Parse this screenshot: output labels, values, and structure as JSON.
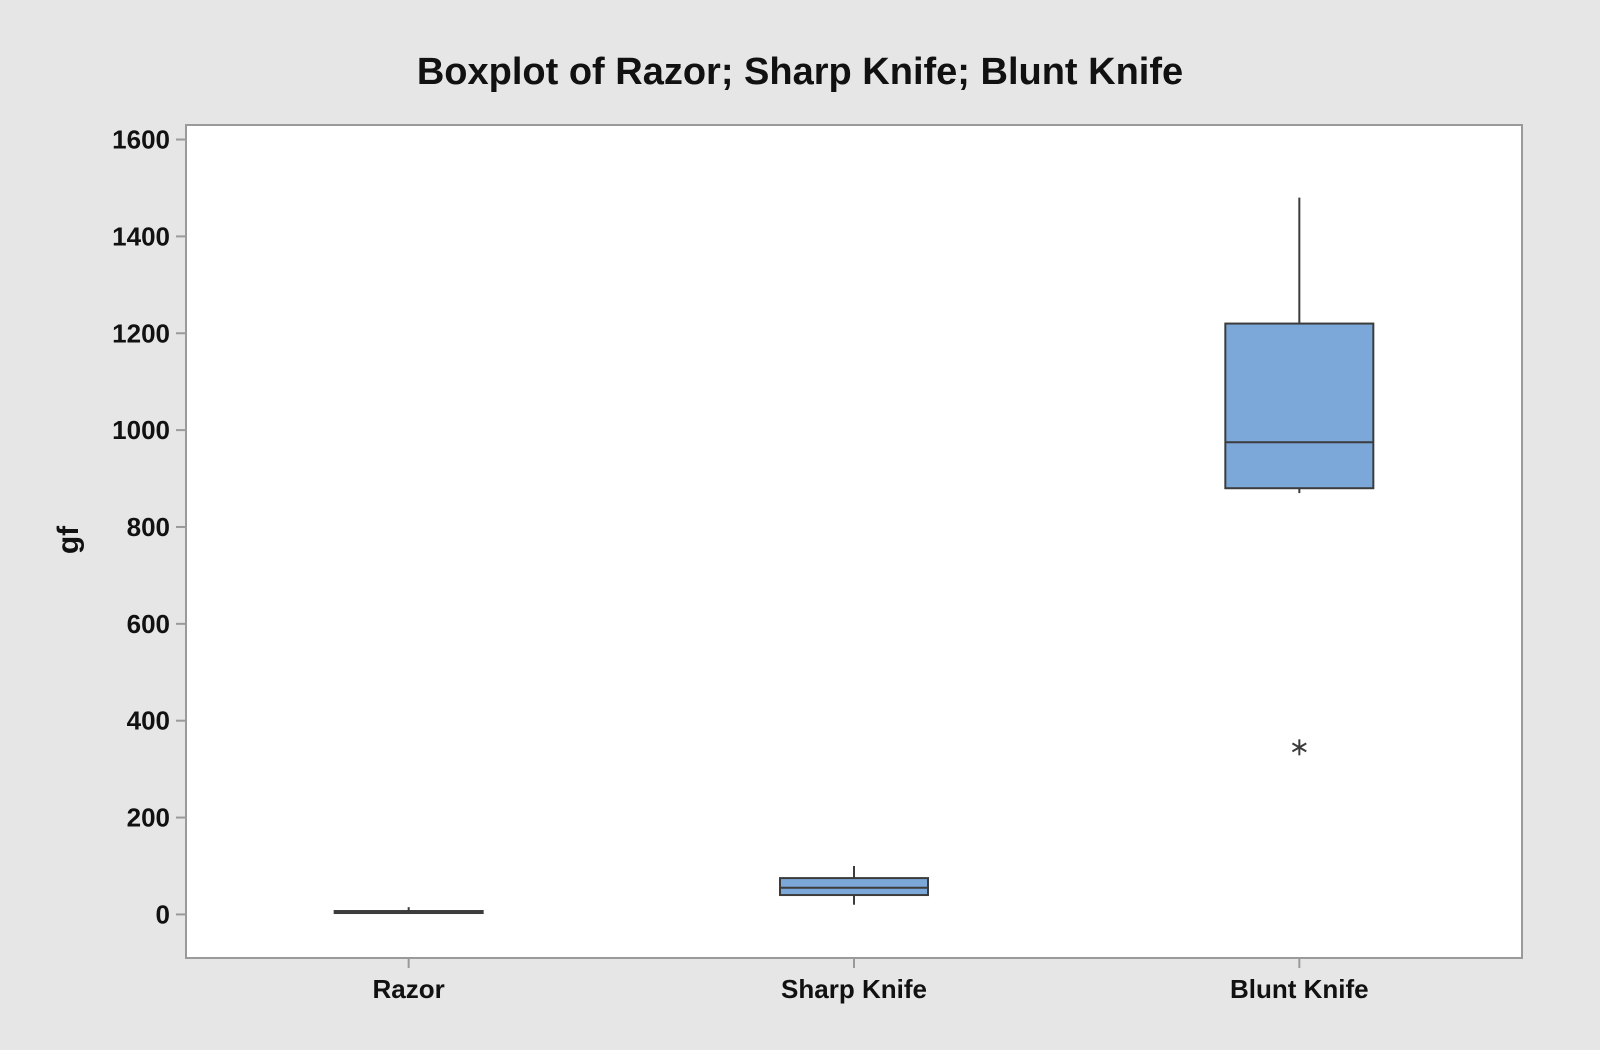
{
  "chart_data": {
    "type": "boxplot",
    "title": "Boxplot of Razor; Sharp Knife; Blunt Knife",
    "xlabel": "",
    "ylabel": "gf",
    "ylim": [
      -90,
      1630
    ],
    "yticks": [
      0,
      200,
      400,
      600,
      800,
      1000,
      1200,
      1400,
      1600
    ],
    "grid": false,
    "categories": [
      "Razor",
      "Sharp Knife",
      "Blunt Knife"
    ],
    "boxes": [
      {
        "name": "Razor",
        "whisker_low": 2,
        "q1": 3,
        "median": 5,
        "q3": 7,
        "whisker_high": 15,
        "outliers": []
      },
      {
        "name": "Sharp Knife",
        "whisker_low": 20,
        "q1": 40,
        "median": 55,
        "q3": 75,
        "whisker_high": 100,
        "outliers": []
      },
      {
        "name": "Blunt Knife",
        "whisker_low": 870,
        "q1": 880,
        "median": 975,
        "q3": 1220,
        "whisker_high": 1480,
        "outliers": [
          345
        ]
      }
    ]
  },
  "colors": {
    "background": "#e6e6e6",
    "plot_area": "#ffffff",
    "box_fill": "#7ba7d9",
    "box_stroke": "#3c3c3c",
    "frame": "#9a9a9a"
  }
}
